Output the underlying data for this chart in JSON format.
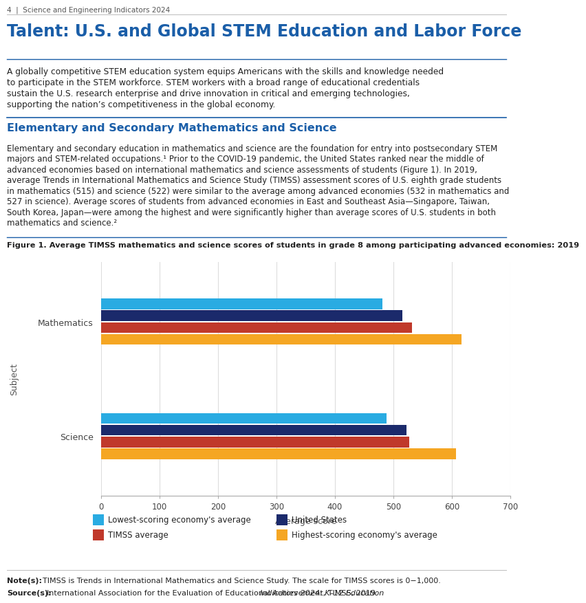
{
  "page_header": "4  |  Science and Engineering Indicators 2024",
  "main_title": "Talent: U.S. and Global STEM Education and Labor Force",
  "intro_text": "A globally competitive STEM education system equips Americans with the skills and knowledge needed to participate in the STEM workforce. STEM workers with a broad range of educational credentials sustain the U.S. research enterprise and drive innovation in critical and emerging technologies, supporting the nation’s competitiveness in the global economy.",
  "section_title": "Elementary and Secondary Mathematics and Science",
  "section_text": "Elementary and secondary education in mathematics and science are the foundation for entry into postsecondary STEM majors and STEM-related occupations.¹ Prior to the COVID-19 pandemic, the United States ranked near the middle of advanced economies based on international mathematics and science assessments of students (Figure 1). In 2019, average Trends in International Mathematics and Science Study (TIMSS) assessment scores of U.S. eighth grade students in mathematics (515) and science (522) were similar to the average among advanced economies (532 in mathematics and 527 in science). Average scores of students from advanced economies in East and Southeast Asia—Singapore, Taiwan, South Korea, Japan—were among the highest and were significantly higher than average scores of U.S. students in both mathematics and science.²",
  "figure_title": "Figure 1. Average TIMSS mathematics and science scores of students in grade 8 among participating advanced economies: 2019",
  "chart": {
    "subjects": [
      "Mathematics",
      "Science"
    ],
    "categories": [
      "Lowest-scoring economy's average",
      "United States",
      "TIMSS average",
      "Highest-scoring economy's average"
    ],
    "colors": [
      "#29ABE2",
      "#1B2A6B",
      "#C0392B",
      "#F5A623"
    ],
    "math_values": [
      481,
      515,
      532,
      616
    ],
    "science_values": [
      488,
      522,
      527,
      607
    ],
    "xlabel": "Average score",
    "ylabel": "Subject",
    "xlim": [
      0,
      700
    ],
    "xticks": [
      0,
      100,
      200,
      300,
      400,
      500,
      600,
      700
    ]
  },
  "legend_items": [
    {
      "label": "Lowest-scoring economy's average",
      "color": "#29ABE2"
    },
    {
      "label": "United States",
      "color": "#1B2A6B"
    },
    {
      "label": "TIMSS average",
      "color": "#C0392B"
    },
    {
      "label": "Highest-scoring economy's average",
      "color": "#F5A623"
    }
  ],
  "note_label": "Note(s):",
  "note_text": "TIMSS is Trends in International Mathematics and Science Study. The scale for TIMSS scores is 0−1,000.",
  "source_label": "Source(s):",
  "source_text_normal": "International Association for the Evaluation of Educational Achievement, TIMSS, 2019. ",
  "source_text_italic": "Indicators 2024: K–12 Education",
  "colors": {
    "title_blue": "#1A5EA8",
    "section_title_blue": "#1A5EA8",
    "header_gray": "#555555",
    "body_text": "#222222",
    "divider_gray": "#BBBBBB",
    "divider_blue": "#1A5EA8",
    "background": "#FFFFFF",
    "grid_line": "#DDDDDD",
    "figure1_ref": "#1A5EA8"
  }
}
